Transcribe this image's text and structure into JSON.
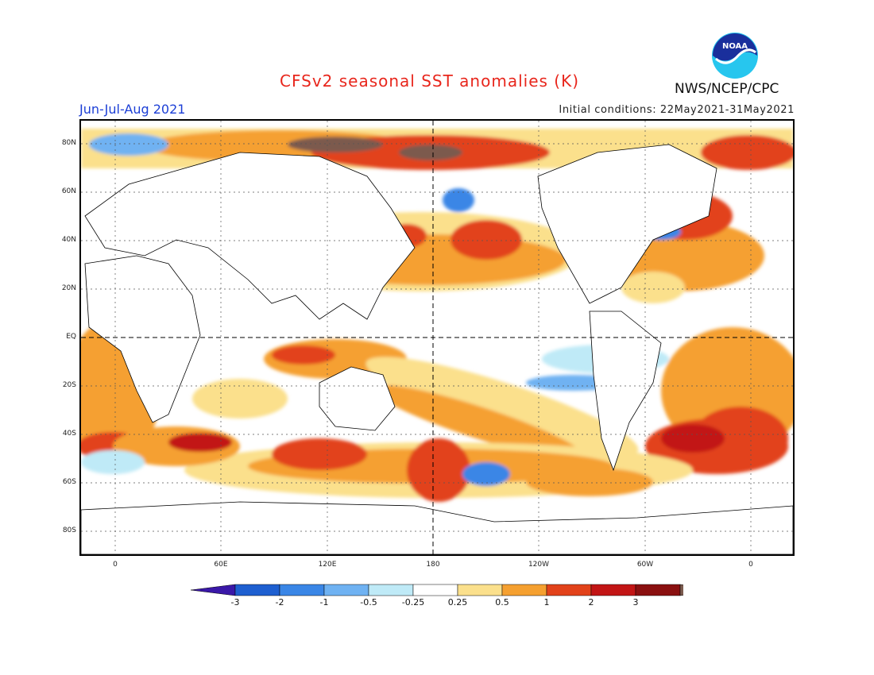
{
  "title": "CFSv2 seasonal SST anomalies (K)",
  "period": "Jun-Jul-Aug 2021",
  "initial_conditions": "Initial conditions: 22May2021-31May2021",
  "agency": "NWS/NCEP/CPC",
  "logo_text": "NOAA",
  "lat_labels": [
    "80N",
    "60N",
    "40N",
    "20N",
    "EQ",
    "20S",
    "40S",
    "60S",
    "80S"
  ],
  "lon_labels": [
    "0",
    "60E",
    "120E",
    "180",
    "120W",
    "60W",
    "0"
  ],
  "colorbar": {
    "tick_labels": [
      "-3",
      "-2",
      "-1",
      "-0.5",
      "-0.25",
      "0.25",
      "0.5",
      "1",
      "2",
      "3"
    ],
    "colors": [
      "#3a18a8",
      "#1e5fd0",
      "#3a86e6",
      "#6fb2f2",
      "#bfeaf7",
      "#ffffff",
      "#fbe08c",
      "#f5a030",
      "#e2421a",
      "#c21515",
      "#8a1010",
      "#7b5a4e"
    ]
  }
}
